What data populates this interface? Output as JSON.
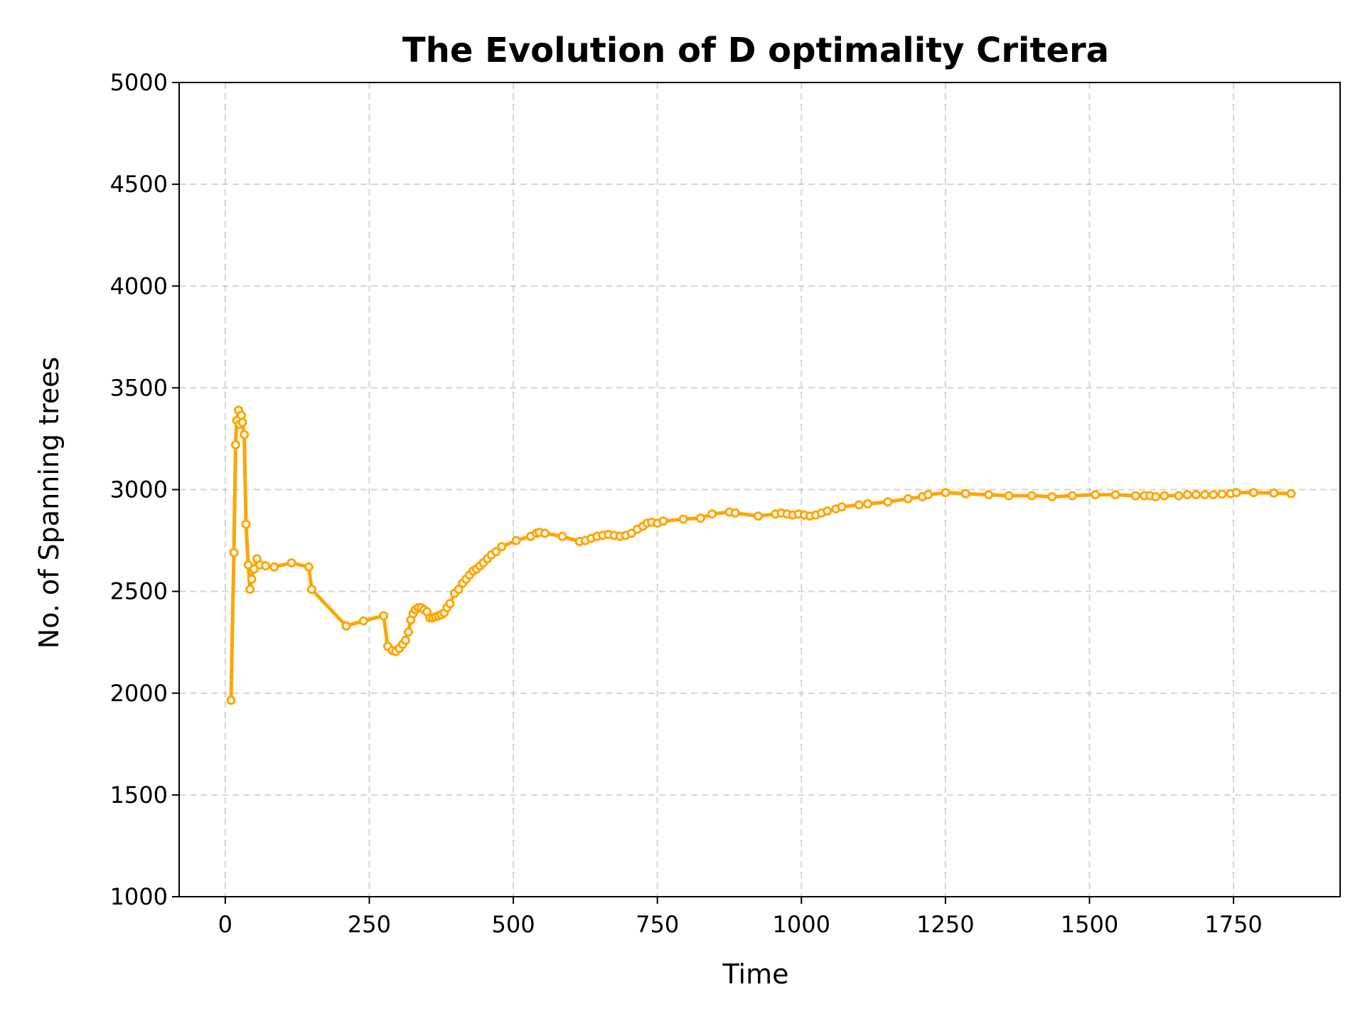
{
  "chart_data": {
    "type": "line",
    "title": "The Evolution of D optimality Critera",
    "xlabel": "Time",
    "ylabel": "No. of Spanning trees",
    "xlim": [
      -80,
      1935
    ],
    "ylim": [
      1000,
      5000
    ],
    "xticks": [
      0,
      250,
      500,
      750,
      1000,
      1250,
      1500,
      1750
    ],
    "xtick_labels": [
      "0",
      "250",
      "500",
      "750",
      "1000",
      "1250",
      "1500",
      "1750"
    ],
    "yticks": [
      1000,
      1500,
      2000,
      2500,
      3000,
      3500,
      4000,
      4500,
      5000
    ],
    "ytick_labels": [
      "1000",
      "1500",
      "2000",
      "2500",
      "3000",
      "3500",
      "4000",
      "4500",
      "5000"
    ],
    "grid": true,
    "color": "#FFA500",
    "series": [
      {
        "x": [
          10,
          15,
          18,
          20,
          23,
          25,
          28,
          30,
          33,
          36,
          40,
          43,
          46,
          50,
          55,
          60,
          70,
          85,
          115,
          145,
          150,
          210,
          240,
          275,
          282,
          290,
          296,
          302,
          308,
          313,
          318,
          322,
          326,
          330,
          335,
          340,
          345,
          350,
          355,
          360,
          365,
          370,
          375,
          380,
          385,
          390,
          398,
          405,
          412,
          418,
          424,
          430,
          436,
          442,
          448,
          455,
          462,
          470,
          480,
          505,
          530,
          540,
          545,
          555,
          585,
          615,
          625,
          635,
          645,
          655,
          665,
          675,
          685,
          695,
          705,
          715,
          725,
          732,
          740,
          750,
          760,
          795,
          825,
          845,
          875,
          885,
          925,
          955,
          965,
          975,
          985,
          995,
          1005,
          1015,
          1025,
          1035,
          1045,
          1060,
          1070,
          1100,
          1115,
          1150,
          1185,
          1210,
          1220,
          1250,
          1285,
          1325,
          1360,
          1400,
          1435,
          1470,
          1510,
          1545,
          1580,
          1595,
          1605,
          1615,
          1630,
          1655,
          1670,
          1685,
          1700,
          1715,
          1730,
          1745,
          1755,
          1785,
          1820,
          1850
        ],
        "y": [
          1965,
          2690,
          3220,
          3340,
          3390,
          3320,
          3365,
          3330,
          3270,
          2830,
          2630,
          2510,
          2560,
          2610,
          2660,
          2630,
          2625,
          2620,
          2640,
          2620,
          2510,
          2330,
          2355,
          2380,
          2230,
          2210,
          2205,
          2220,
          2240,
          2260,
          2300,
          2360,
          2390,
          2410,
          2420,
          2420,
          2410,
          2400,
          2370,
          2370,
          2375,
          2380,
          2385,
          2395,
          2420,
          2440,
          2490,
          2510,
          2540,
          2560,
          2580,
          2600,
          2610,
          2625,
          2640,
          2660,
          2680,
          2695,
          2720,
          2750,
          2770,
          2785,
          2790,
          2785,
          2770,
          2745,
          2750,
          2760,
          2770,
          2775,
          2780,
          2775,
          2770,
          2775,
          2785,
          2805,
          2820,
          2835,
          2840,
          2835,
          2845,
          2855,
          2860,
          2880,
          2890,
          2885,
          2870,
          2880,
          2885,
          2880,
          2875,
          2880,
          2875,
          2870,
          2875,
          2885,
          2895,
          2905,
          2915,
          2925,
          2930,
          2940,
          2955,
          2965,
          2975,
          2985,
          2980,
          2975,
          2970,
          2970,
          2965,
          2970,
          2975,
          2975,
          2970,
          2970,
          2970,
          2965,
          2970,
          2970,
          2975,
          2975,
          2975,
          2975,
          2978,
          2980,
          2985,
          2985,
          2983,
          2980
        ]
      }
    ]
  }
}
